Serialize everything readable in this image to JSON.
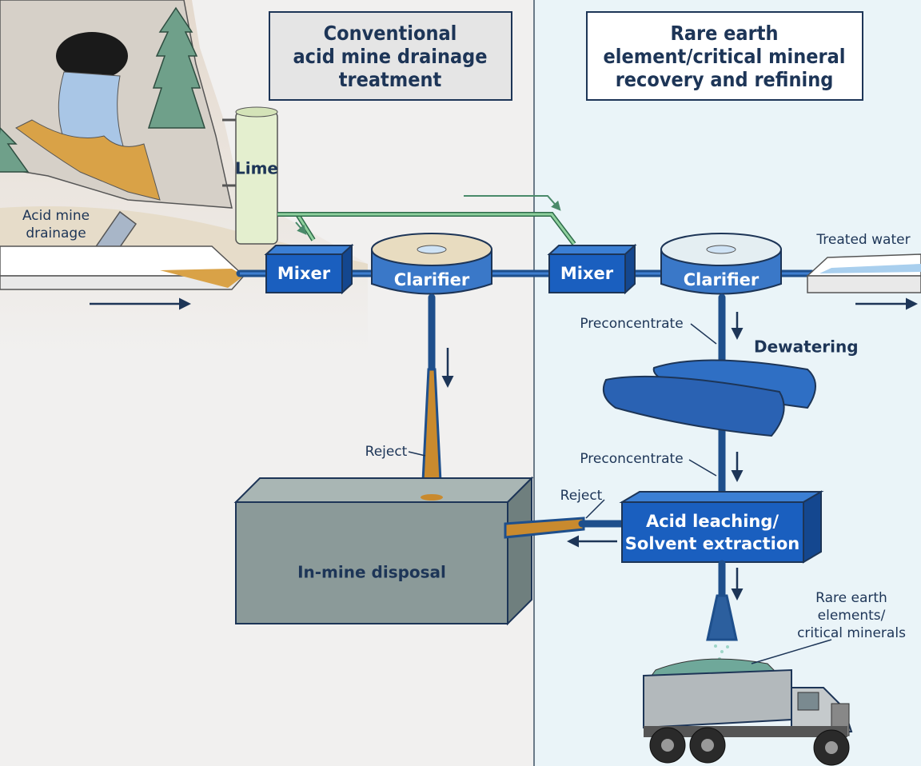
{
  "sections": [
    {
      "title_lines": [
        "Conventional",
        "acid mine drainage",
        "treatment"
      ]
    },
    {
      "title_lines": [
        "Rare earth",
        "element/critical mineral",
        "recovery and refining"
      ]
    }
  ],
  "labels": {
    "acid_mine_drainage": [
      "Acid mine",
      "drainage"
    ],
    "lime": "Lime",
    "mixer_1": "Mixer",
    "clarifier_1": "Clarifier",
    "mixer_2": "Mixer",
    "clarifier_2": "Clarifier",
    "treated_water": "Treated water",
    "preconcentrate_1": "Preconcentrate",
    "dewatering": "Dewatering",
    "preconcentrate_2": "Preconcentrate",
    "reject_1": "Reject",
    "reject_2": "Reject",
    "acid_leaching": [
      "Acid leaching/",
      "Solvent extraction"
    ],
    "in_mine_disposal": "In-mine disposal",
    "rare_earth_output": [
      "Rare earth",
      "elements/",
      "critical minerals"
    ]
  }
}
